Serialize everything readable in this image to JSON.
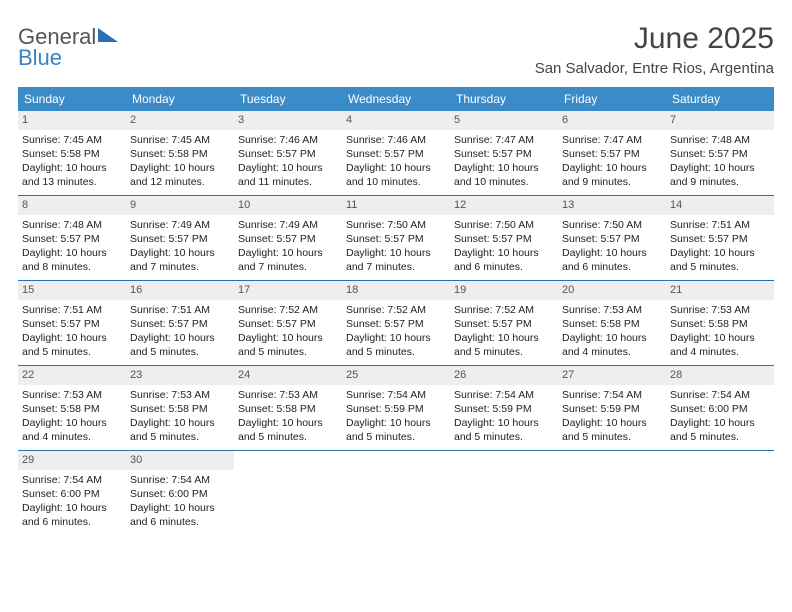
{
  "brand": {
    "line1": "General",
    "line2": "Blue"
  },
  "title": "June 2025",
  "location": "San Salvador, Entre Rios, Argentina",
  "colors": {
    "header_bg": "#3b8bc9",
    "divider": "#2a6fb0",
    "daynum_bg": "#eeeeee",
    "text": "#333333"
  },
  "day_headers": [
    "Sunday",
    "Monday",
    "Tuesday",
    "Wednesday",
    "Thursday",
    "Friday",
    "Saturday"
  ],
  "weeks": [
    [
      {
        "n": "1",
        "sr": "Sunrise: 7:45 AM",
        "ss": "Sunset: 5:58 PM",
        "d1": "Daylight: 10 hours",
        "d2": "and 13 minutes."
      },
      {
        "n": "2",
        "sr": "Sunrise: 7:45 AM",
        "ss": "Sunset: 5:58 PM",
        "d1": "Daylight: 10 hours",
        "d2": "and 12 minutes."
      },
      {
        "n": "3",
        "sr": "Sunrise: 7:46 AM",
        "ss": "Sunset: 5:57 PM",
        "d1": "Daylight: 10 hours",
        "d2": "and 11 minutes."
      },
      {
        "n": "4",
        "sr": "Sunrise: 7:46 AM",
        "ss": "Sunset: 5:57 PM",
        "d1": "Daylight: 10 hours",
        "d2": "and 10 minutes."
      },
      {
        "n": "5",
        "sr": "Sunrise: 7:47 AM",
        "ss": "Sunset: 5:57 PM",
        "d1": "Daylight: 10 hours",
        "d2": "and 10 minutes."
      },
      {
        "n": "6",
        "sr": "Sunrise: 7:47 AM",
        "ss": "Sunset: 5:57 PM",
        "d1": "Daylight: 10 hours",
        "d2": "and 9 minutes."
      },
      {
        "n": "7",
        "sr": "Sunrise: 7:48 AM",
        "ss": "Sunset: 5:57 PM",
        "d1": "Daylight: 10 hours",
        "d2": "and 9 minutes."
      }
    ],
    [
      {
        "n": "8",
        "sr": "Sunrise: 7:48 AM",
        "ss": "Sunset: 5:57 PM",
        "d1": "Daylight: 10 hours",
        "d2": "and 8 minutes."
      },
      {
        "n": "9",
        "sr": "Sunrise: 7:49 AM",
        "ss": "Sunset: 5:57 PM",
        "d1": "Daylight: 10 hours",
        "d2": "and 7 minutes."
      },
      {
        "n": "10",
        "sr": "Sunrise: 7:49 AM",
        "ss": "Sunset: 5:57 PM",
        "d1": "Daylight: 10 hours",
        "d2": "and 7 minutes."
      },
      {
        "n": "11",
        "sr": "Sunrise: 7:50 AM",
        "ss": "Sunset: 5:57 PM",
        "d1": "Daylight: 10 hours",
        "d2": "and 7 minutes."
      },
      {
        "n": "12",
        "sr": "Sunrise: 7:50 AM",
        "ss": "Sunset: 5:57 PM",
        "d1": "Daylight: 10 hours",
        "d2": "and 6 minutes."
      },
      {
        "n": "13",
        "sr": "Sunrise: 7:50 AM",
        "ss": "Sunset: 5:57 PM",
        "d1": "Daylight: 10 hours",
        "d2": "and 6 minutes."
      },
      {
        "n": "14",
        "sr": "Sunrise: 7:51 AM",
        "ss": "Sunset: 5:57 PM",
        "d1": "Daylight: 10 hours",
        "d2": "and 5 minutes."
      }
    ],
    [
      {
        "n": "15",
        "sr": "Sunrise: 7:51 AM",
        "ss": "Sunset: 5:57 PM",
        "d1": "Daylight: 10 hours",
        "d2": "and 5 minutes."
      },
      {
        "n": "16",
        "sr": "Sunrise: 7:51 AM",
        "ss": "Sunset: 5:57 PM",
        "d1": "Daylight: 10 hours",
        "d2": "and 5 minutes."
      },
      {
        "n": "17",
        "sr": "Sunrise: 7:52 AM",
        "ss": "Sunset: 5:57 PM",
        "d1": "Daylight: 10 hours",
        "d2": "and 5 minutes."
      },
      {
        "n": "18",
        "sr": "Sunrise: 7:52 AM",
        "ss": "Sunset: 5:57 PM",
        "d1": "Daylight: 10 hours",
        "d2": "and 5 minutes."
      },
      {
        "n": "19",
        "sr": "Sunrise: 7:52 AM",
        "ss": "Sunset: 5:57 PM",
        "d1": "Daylight: 10 hours",
        "d2": "and 5 minutes."
      },
      {
        "n": "20",
        "sr": "Sunrise: 7:53 AM",
        "ss": "Sunset: 5:58 PM",
        "d1": "Daylight: 10 hours",
        "d2": "and 4 minutes."
      },
      {
        "n": "21",
        "sr": "Sunrise: 7:53 AM",
        "ss": "Sunset: 5:58 PM",
        "d1": "Daylight: 10 hours",
        "d2": "and 4 minutes."
      }
    ],
    [
      {
        "n": "22",
        "sr": "Sunrise: 7:53 AM",
        "ss": "Sunset: 5:58 PM",
        "d1": "Daylight: 10 hours",
        "d2": "and 4 minutes."
      },
      {
        "n": "23",
        "sr": "Sunrise: 7:53 AM",
        "ss": "Sunset: 5:58 PM",
        "d1": "Daylight: 10 hours",
        "d2": "and 5 minutes."
      },
      {
        "n": "24",
        "sr": "Sunrise: 7:53 AM",
        "ss": "Sunset: 5:58 PM",
        "d1": "Daylight: 10 hours",
        "d2": "and 5 minutes."
      },
      {
        "n": "25",
        "sr": "Sunrise: 7:54 AM",
        "ss": "Sunset: 5:59 PM",
        "d1": "Daylight: 10 hours",
        "d2": "and 5 minutes."
      },
      {
        "n": "26",
        "sr": "Sunrise: 7:54 AM",
        "ss": "Sunset: 5:59 PM",
        "d1": "Daylight: 10 hours",
        "d2": "and 5 minutes."
      },
      {
        "n": "27",
        "sr": "Sunrise: 7:54 AM",
        "ss": "Sunset: 5:59 PM",
        "d1": "Daylight: 10 hours",
        "d2": "and 5 minutes."
      },
      {
        "n": "28",
        "sr": "Sunrise: 7:54 AM",
        "ss": "Sunset: 6:00 PM",
        "d1": "Daylight: 10 hours",
        "d2": "and 5 minutes."
      }
    ],
    [
      {
        "n": "29",
        "sr": "Sunrise: 7:54 AM",
        "ss": "Sunset: 6:00 PM",
        "d1": "Daylight: 10 hours",
        "d2": "and 6 minutes."
      },
      {
        "n": "30",
        "sr": "Sunrise: 7:54 AM",
        "ss": "Sunset: 6:00 PM",
        "d1": "Daylight: 10 hours",
        "d2": "and 6 minutes."
      },
      null,
      null,
      null,
      null,
      null
    ]
  ]
}
